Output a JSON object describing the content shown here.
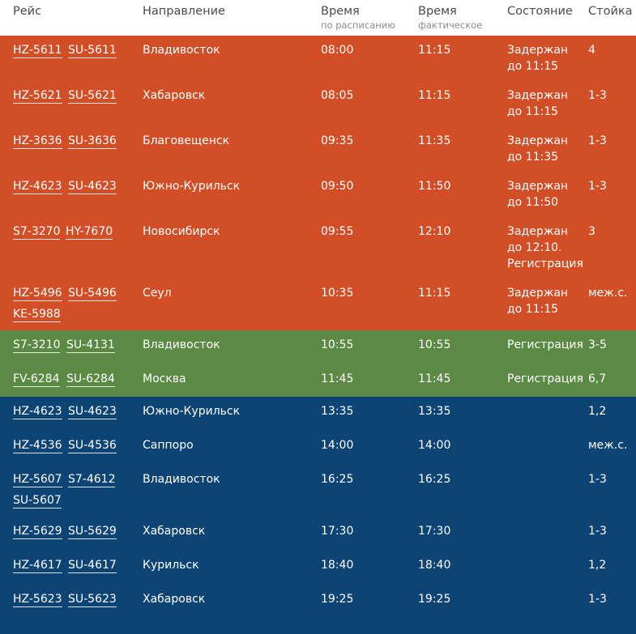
{
  "header": {
    "flight": "Рейс",
    "direction": "Направление",
    "time_scheduled": "Время",
    "time_scheduled_sub": "по расписанию",
    "time_actual": "Время",
    "time_actual_sub": "фактическое",
    "status": "Состояние",
    "desk": "Стойка"
  },
  "colors": {
    "delayed": "#d24e26",
    "checkin": "#5a8a44",
    "scheduled": "#0d4476"
  },
  "rows": [
    {
      "codes": [
        "HZ-5611",
        "SU-5611"
      ],
      "direction": "Владивосток",
      "scheduled": "08:00",
      "actual": "11:15",
      "status": "Задержан\nдо 11:15",
      "desk": "4"
    },
    {
      "codes": [
        "HZ-5621",
        "SU-5621"
      ],
      "direction": "Хабаровск",
      "scheduled": "08:05",
      "actual": "11:15",
      "status": "Задержан\nдо 11:15",
      "desk": "1-3"
    },
    {
      "codes": [
        "HZ-3636",
        "SU-3636"
      ],
      "direction": "Благовещенск",
      "scheduled": "09:35",
      "actual": "11:35",
      "status": "Задержан\nдо 11:35",
      "desk": "1-3"
    },
    {
      "codes": [
        "HZ-4623",
        "SU-4623"
      ],
      "direction": "Южно-Курильск",
      "scheduled": "09:50",
      "actual": "11:50",
      "status": "Задержан\nдо 11:50",
      "desk": "1-3"
    },
    {
      "codes": [
        "S7-3270",
        "HY-7670"
      ],
      "direction": "Новосибирск",
      "scheduled": "09:55",
      "actual": "12:10",
      "status": "Задержан\nдо 12:10.\nРегистрация",
      "desk": "3"
    },
    {
      "codes": [
        "HZ-5496",
        "SU-5496",
        "KE-5988"
      ],
      "direction": "Сеул",
      "scheduled": "10:35",
      "actual": "11:15",
      "status": "Задержан\nдо 11:15",
      "desk": "меж.с."
    },
    {
      "codes": [
        "S7-3210",
        "SU-4131"
      ],
      "direction": "Владивосток",
      "scheduled": "10:55",
      "actual": "10:55",
      "status": "Регистрация",
      "desk": "3-5"
    },
    {
      "codes": [
        "FV-6284",
        "SU-6284"
      ],
      "direction": "Москва",
      "scheduled": "11:45",
      "actual": "11:45",
      "status": "Регистрация",
      "desk": "6,7"
    },
    {
      "codes": [
        "HZ-4623",
        "SU-4623"
      ],
      "direction": "Южно-Курильск",
      "scheduled": "13:35",
      "actual": "13:35",
      "status": "",
      "desk": "1,2"
    },
    {
      "codes": [
        "HZ-4536",
        "SU-4536"
      ],
      "direction": "Саппоро",
      "scheduled": "14:00",
      "actual": "14:00",
      "status": "",
      "desk": "меж.с."
    },
    {
      "codes": [
        "HZ-5607",
        "S7-4612",
        "SU-5607"
      ],
      "direction": "Владивосток",
      "scheduled": "16:25",
      "actual": "16:25",
      "status": "",
      "desk": "1-3"
    },
    {
      "codes": [
        "HZ-5629",
        "SU-5629"
      ],
      "direction": "Хабаровск",
      "scheduled": "17:30",
      "actual": "17:30",
      "status": "",
      "desk": "1-3"
    },
    {
      "codes": [
        "HZ-4617",
        "SU-4617"
      ],
      "direction": "Курильск",
      "scheduled": "18:40",
      "actual": "18:40",
      "status": "",
      "desk": "1,2"
    },
    {
      "codes": [
        "HZ-5623",
        "SU-5623"
      ],
      "direction": "Хабаровск",
      "scheduled": "19:25",
      "actual": "19:25",
      "status": "",
      "desk": "1-3"
    }
  ]
}
